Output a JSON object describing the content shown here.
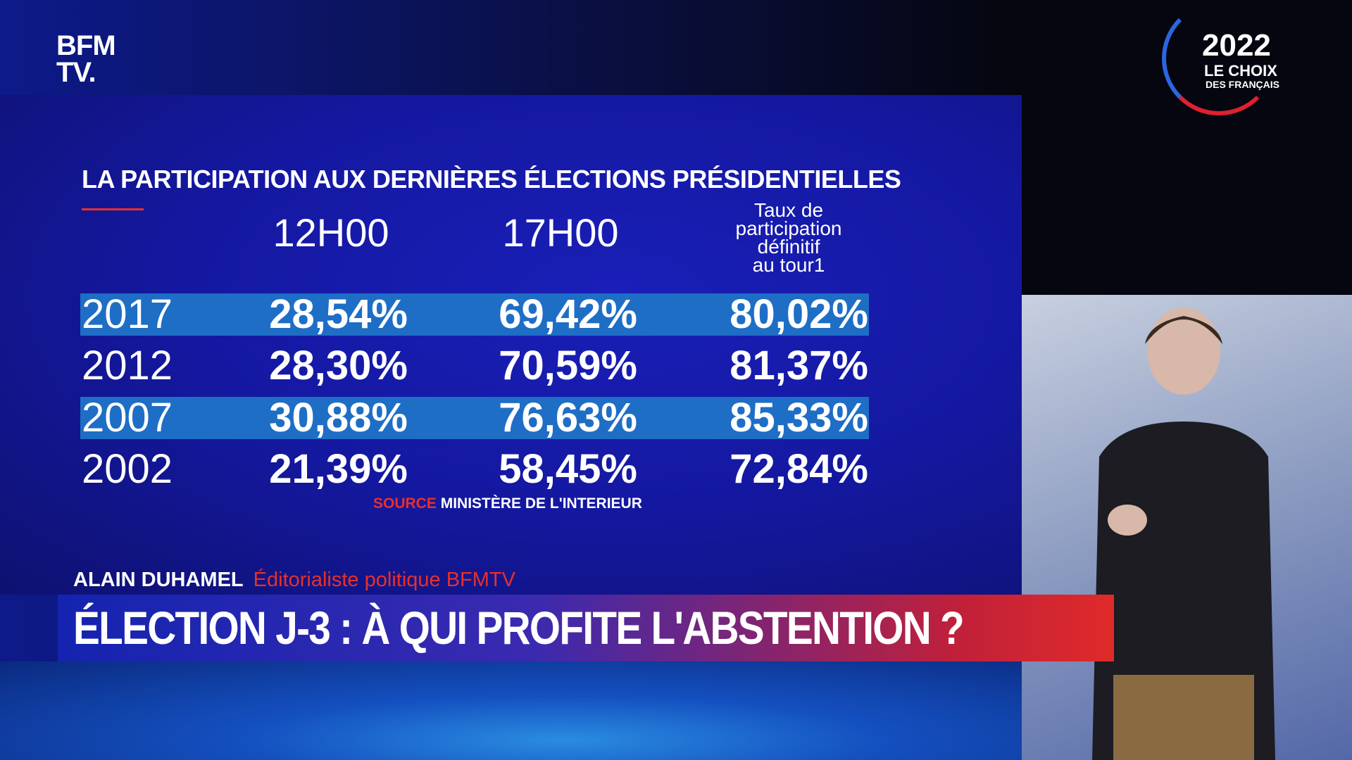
{
  "logo": {
    "line1": "BFM",
    "line2": "TV."
  },
  "badge": {
    "year": "2022",
    "line1": "LE CHOIX",
    "line2": "DES FRANÇAIS"
  },
  "table": {
    "title": "LA PARTICIPATION AUX DERNIÈRES ÉLECTIONS PRÉSIDENTIELLES",
    "columns": [
      "12H00",
      "17H00",
      [
        "Taux de",
        "participation",
        "définitif",
        "au tour1"
      ]
    ],
    "rows": [
      [
        "2017",
        "28,54%",
        "69,42%",
        "80,02%"
      ],
      [
        "2012",
        "28,30%",
        "70,59%",
        "81,37%"
      ],
      [
        "2007",
        "30,88%",
        "76,63%",
        "85,33%"
      ],
      [
        "2002",
        "21,39%",
        "58,45%",
        "72,84%"
      ]
    ],
    "source_label": "SOURCE",
    "source": "MINISTÈRE DE L'INTERIEUR"
  },
  "lower_third": {
    "name": "ALAIN DUHAMEL",
    "role": "Éditorialiste politique BFMTV",
    "headline": "ÉLECTION J-3 : À QUI PROFITE L'ABSTENTION ?"
  }
}
